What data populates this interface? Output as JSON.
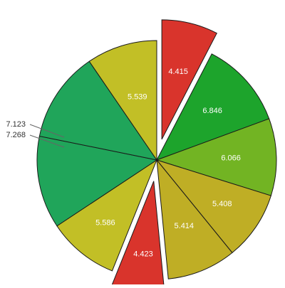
{
  "chart_data": {
    "type": "pie",
    "title": "",
    "legend": "none",
    "slices": [
      {
        "value": 4.415,
        "label": "4.415",
        "color": "#d9342c",
        "exploded": true,
        "label_position": "inside"
      },
      {
        "value": 6.846,
        "label": "6.846",
        "color": "#1da42c",
        "exploded": false,
        "label_position": "inside"
      },
      {
        "value": 6.066,
        "label": "6.066",
        "color": "#72b423",
        "exploded": false,
        "label_position": "inside"
      },
      {
        "value": 5.408,
        "label": "5.408",
        "color": "#bfae25",
        "exploded": false,
        "label_position": "inside"
      },
      {
        "value": 5.414,
        "label": "5.414",
        "color": "#bfae25",
        "exploded": false,
        "label_position": "inside"
      },
      {
        "value": 4.423,
        "label": "4.423",
        "color": "#d9342c",
        "exploded": true,
        "label_position": "inside"
      },
      {
        "value": 5.586,
        "label": "5.586",
        "color": "#c2bf26",
        "exploded": false,
        "label_position": "inside"
      },
      {
        "value": 7.268,
        "label": "7.268",
        "color": "#20a55a",
        "exploded": false,
        "label_position": "outside"
      },
      {
        "value": 7.123,
        "label": "7.123",
        "color": "#20a55a",
        "exploded": false,
        "label_position": "outside"
      },
      {
        "value": 5.539,
        "label": "5.539",
        "color": "#c2bf26",
        "exploded": false,
        "label_position": "inside"
      }
    ]
  }
}
